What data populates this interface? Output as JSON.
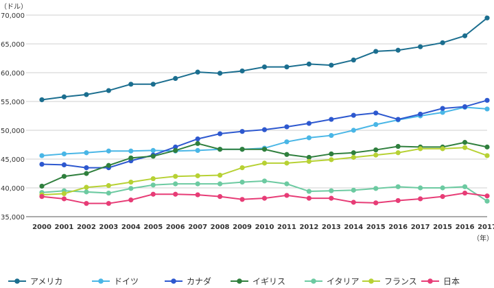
{
  "chart_data": {
    "type": "line",
    "ylabel": "（ドル）",
    "xlabel": "（年）",
    "ylim": [
      35000,
      70000
    ],
    "y_ticks": [
      "35,000",
      "40,000",
      "45,000",
      "50,000",
      "55,000",
      "60,000",
      "65,000",
      "70,000"
    ],
    "categories": [
      "2000",
      "2001",
      "2002",
      "2003",
      "2004",
      "2005",
      "2006",
      "2007",
      "2008",
      "2009",
      "2010",
      "2011",
      "2012",
      "2013",
      "2014",
      "2015",
      "2016",
      "2017",
      "2015",
      "2016",
      "2017"
    ],
    "grid": true,
    "legend_position": "bottom",
    "series": [
      {
        "name": "アメリカ",
        "color": "#1b6e8f",
        "values": [
          55300,
          55800,
          56200,
          56900,
          58000,
          58000,
          59000,
          60100,
          59900,
          60300,
          61000,
          61000,
          61500,
          61300,
          62200,
          63700,
          63900,
          64500,
          65200,
          66400,
          69500
        ]
      },
      {
        "name": "ドイツ",
        "color": "#49b6e6",
        "values": [
          45600,
          45900,
          46100,
          46400,
          46400,
          46500,
          46400,
          46500,
          46700,
          46700,
          46900,
          48000,
          48700,
          49100,
          50000,
          51000,
          51800,
          52500,
          53100,
          54000,
          53700
        ]
      },
      {
        "name": "カナダ",
        "color": "#2d58cf",
        "values": [
          44100,
          44000,
          43500,
          43500,
          44700,
          45700,
          47100,
          48500,
          49400,
          49800,
          50100,
          50600,
          51200,
          51900,
          52600,
          53000,
          51900,
          52800,
          53800,
          54100,
          55200
        ]
      },
      {
        "name": "イギリス",
        "color": "#2f7f3d",
        "values": [
          40300,
          42000,
          42500,
          43900,
          45200,
          45500,
          46500,
          47700,
          46700,
          46700,
          46700,
          45800,
          45300,
          45900,
          46100,
          46600,
          47200,
          47100,
          47100,
          47900,
          47100
        ]
      },
      {
        "name": "イタリア",
        "color": "#6ccaa1",
        "values": [
          39200,
          39500,
          39300,
          39100,
          39900,
          40500,
          40700,
          40700,
          40700,
          41000,
          41200,
          40700,
          39400,
          39500,
          39600,
          39900,
          40200,
          40000,
          40000,
          40200,
          37700
        ]
      },
      {
        "name": "フランス",
        "color": "#b7d134",
        "values": [
          38800,
          39000,
          40100,
          40400,
          41000,
          41600,
          42000,
          42100,
          42200,
          43500,
          44300,
          44300,
          44600,
          44900,
          45300,
          45700,
          46100,
          46800,
          46800,
          47000,
          45600
        ]
      },
      {
        "name": "日本",
        "color": "#e73c76",
        "values": [
          38500,
          38100,
          37300,
          37300,
          37900,
          38900,
          38900,
          38800,
          38500,
          38000,
          38200,
          38700,
          38200,
          38200,
          37500,
          37400,
          37800,
          38100,
          38500,
          39100,
          38600
        ]
      }
    ]
  }
}
